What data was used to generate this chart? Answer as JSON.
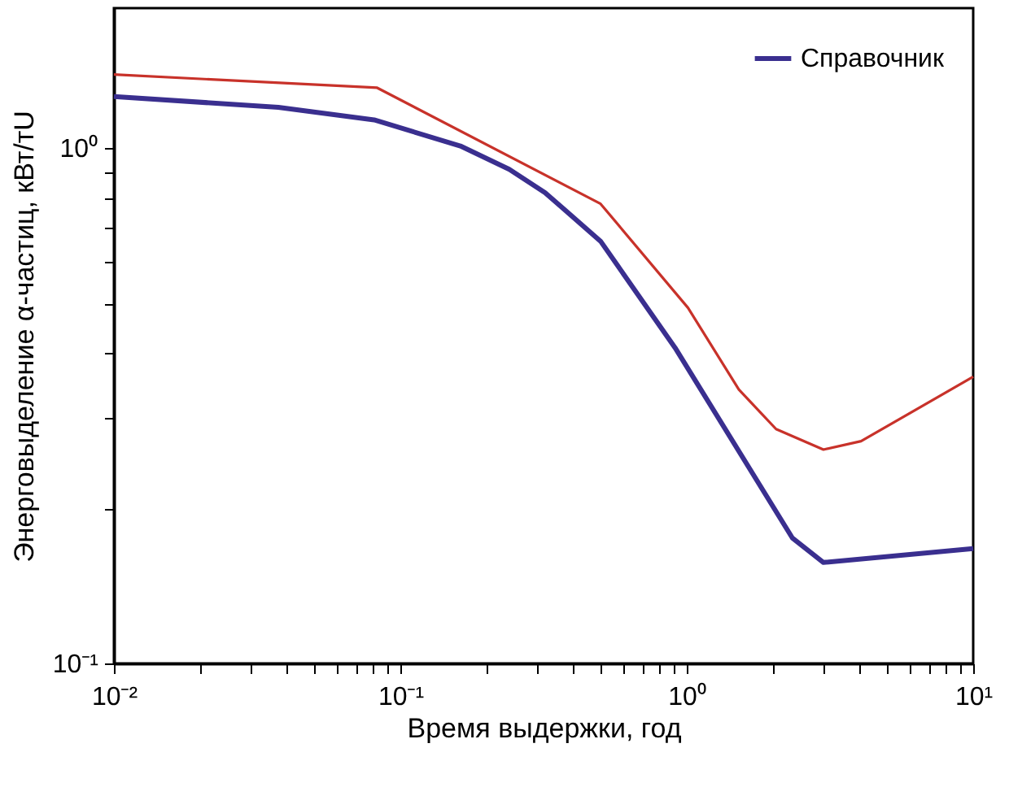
{
  "chart_data": {
    "type": "line",
    "xlabel": "Время выдержки, год",
    "ylabel": "Энерговыделение α-частиц, кВт/тU",
    "log": "xy",
    "grid": false,
    "legend": "top right",
    "marker": "none",
    "line_style": "solid",
    "xlim": [
      0.01,
      10
    ],
    "ylim": [
      0.1,
      1.87
    ],
    "xticks": [
      {
        "value": 0.01,
        "label": "10⁻²"
      },
      {
        "value": 0.02,
        "label": null
      },
      {
        "value": 0.03,
        "label": null
      },
      {
        "value": 0.04,
        "label": null
      },
      {
        "value": 0.05,
        "label": null
      },
      {
        "value": 0.06,
        "label": null
      },
      {
        "value": 0.07,
        "label": null
      },
      {
        "value": 0.08,
        "label": null
      },
      {
        "value": 0.09,
        "label": null
      },
      {
        "value": 0.1,
        "label": "10⁻¹"
      },
      {
        "value": 0.2,
        "label": null
      },
      {
        "value": 0.3,
        "label": null
      },
      {
        "value": 0.4,
        "label": null
      },
      {
        "value": 0.5,
        "label": null
      },
      {
        "value": 0.6,
        "label": null
      },
      {
        "value": 0.7,
        "label": null
      },
      {
        "value": 0.8,
        "label": null
      },
      {
        "value": 0.9,
        "label": null
      },
      {
        "value": 1,
        "label": "10⁰"
      },
      {
        "value": 2,
        "label": null
      },
      {
        "value": 3,
        "label": null
      },
      {
        "value": 4,
        "label": null
      },
      {
        "value": 5,
        "label": null
      },
      {
        "value": 6,
        "label": null
      },
      {
        "value": 7,
        "label": null
      },
      {
        "value": 8,
        "label": null
      },
      {
        "value": 9,
        "label": null
      },
      {
        "value": 10,
        "label": "10¹"
      }
    ],
    "yticks": [
      {
        "value": 0.1,
        "label": "10⁻¹"
      },
      {
        "value": 0.2,
        "label": null
      },
      {
        "value": 0.3,
        "label": null
      },
      {
        "value": 0.4,
        "label": null
      },
      {
        "value": 0.5,
        "label": null
      },
      {
        "value": 0.6,
        "label": null
      },
      {
        "value": 0.7,
        "label": null
      },
      {
        "value": 0.8,
        "label": null
      },
      {
        "value": 0.9,
        "label": null
      },
      {
        "value": 1,
        "label": "10⁰"
      }
    ],
    "series": [
      {
        "name": "Справочник",
        "color": "#3a2f8f",
        "x": [
          0.01,
          0.0375,
          0.081,
          0.162,
          0.24,
          0.32,
          0.5,
          0.91,
          2.34,
          3.0,
          10
        ],
        "values": [
          1.26,
          1.2,
          1.135,
          1.01,
          0.91,
          0.82,
          0.66,
          0.41,
          0.175,
          0.157,
          0.167
        ]
      },
      {
        "color": "#c8322a",
        "x": [
          0.01,
          0.083,
          0.5,
          1.01,
          1.52,
          2.05,
          3.0,
          4.06,
          10
        ],
        "values": [
          1.39,
          1.31,
          0.78,
          0.49,
          0.34,
          0.285,
          0.26,
          0.27,
          0.36
        ]
      }
    ]
  }
}
